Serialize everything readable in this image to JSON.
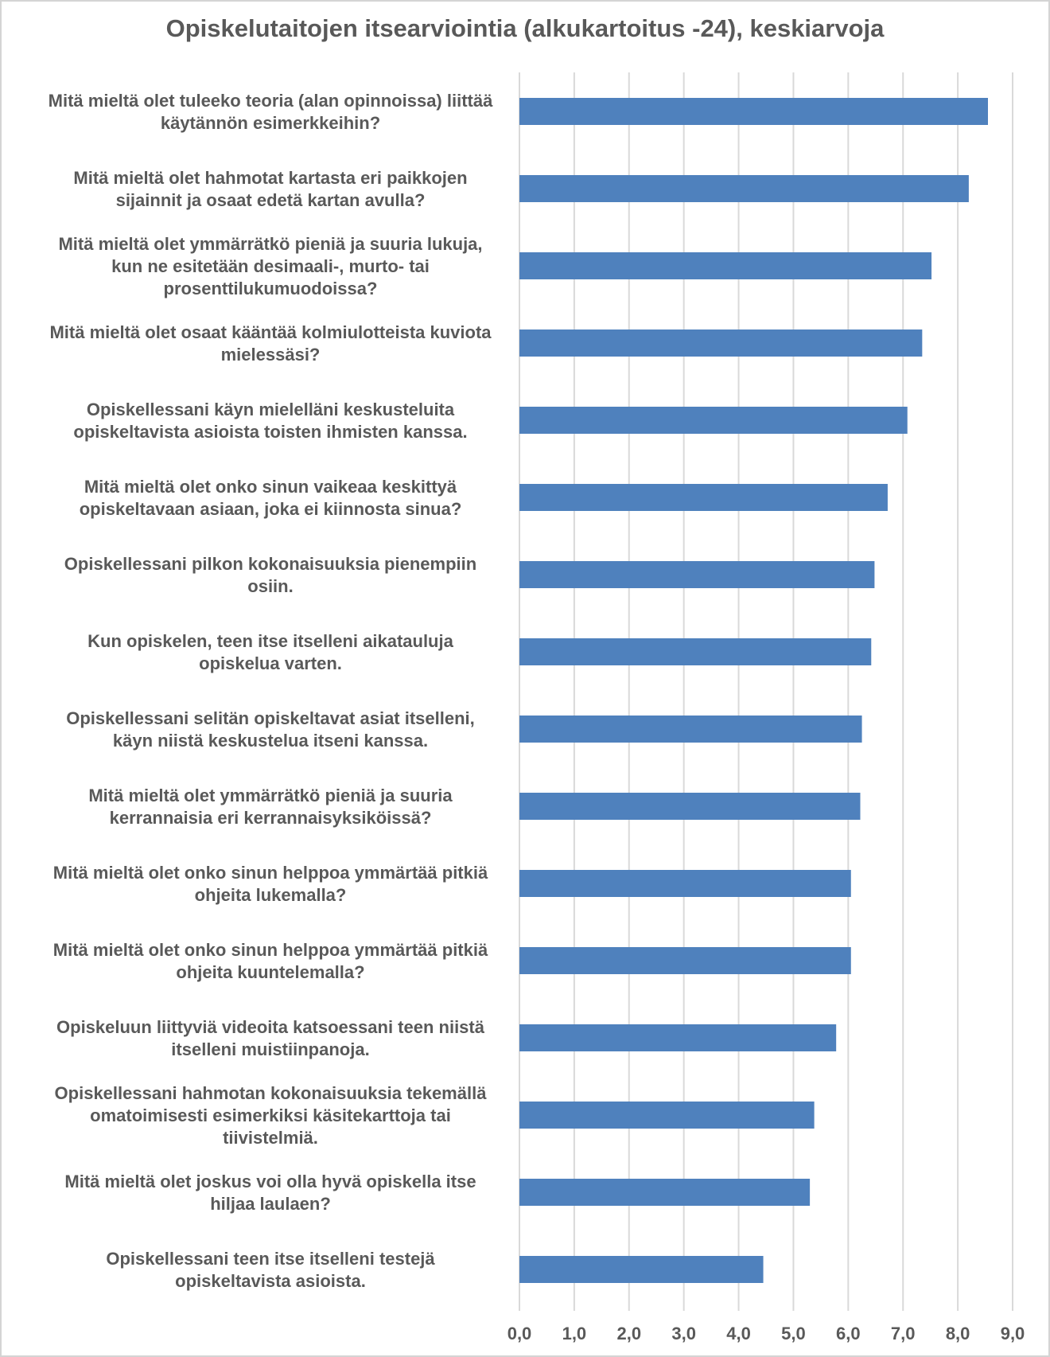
{
  "chart_data": {
    "type": "bar",
    "orientation": "horizontal",
    "title": "Opiskelutaitojen itsearviointia (alkukartoitus -24), keskiarvoja",
    "xlabel": "",
    "ylabel": "",
    "xlim": [
      0,
      9
    ],
    "ticks": [
      "0,0",
      "1,0",
      "2,0",
      "3,0",
      "4,0",
      "5,0",
      "6,0",
      "7,0",
      "8,0",
      "9,0"
    ],
    "grid": "vertical",
    "bar_color": "#4f81bd",
    "categories": [
      [
        "Mitä mieltä olet tuleeko teoria (alan opinnoissa) liittää",
        "käytännön esimerkkeihin?"
      ],
      [
        "Mitä mieltä olet hahmotat kartasta eri paikkojen",
        "sijainnit ja osaat edetä kartan avulla?"
      ],
      [
        "Mitä mieltä olet ymmärrätkö pieniä ja suuria lukuja,",
        "kun ne esitetään desimaali-, murto- tai",
        "prosenttilukumuodoissa?"
      ],
      [
        "Mitä mieltä olet osaat kääntää kolmiulotteista kuviota",
        "mielessäsi?"
      ],
      [
        "Opiskellessani käyn mielelläni keskusteluita",
        "opiskeltavista asioista toisten ihmisten kanssa."
      ],
      [
        "Mitä mieltä olet onko sinun vaikeaa keskittyä",
        "opiskeltavaan asiaan, joka ei kiinnosta sinua?"
      ],
      [
        "Opiskellessani pilkon kokonaisuuksia pienempiin",
        "osiin."
      ],
      [
        "Kun opiskelen, teen itse itselleni aikatauluja",
        "opiskelua varten."
      ],
      [
        "Opiskellessani selitän opiskeltavat asiat itselleni,",
        "käyn niistä keskustelua itseni kanssa."
      ],
      [
        "Mitä mieltä olet ymmärrätkö pieniä ja suuria",
        "kerrannaisia eri kerrannaisyksiköissä?"
      ],
      [
        "Mitä mieltä olet onko sinun helppoa ymmärtää pitkiä",
        "ohjeita lukemalla?"
      ],
      [
        "Mitä mieltä olet onko sinun helppoa ymmärtää pitkiä",
        "ohjeita kuuntelemalla?"
      ],
      [
        "Opiskeluun liittyviä videoita katsoessani teen niistä",
        "itselleni muistiinpanoja."
      ],
      [
        "Opiskellessani hahmotan kokonaisuuksia tekemällä",
        "omatoimisesti esimerkiksi käsitekarttoja tai",
        "tiivistelmiä."
      ],
      [
        "Mitä mieltä olet joskus voi olla hyvä opiskella itse",
        "hiljaa laulaen?"
      ],
      [
        "Opiskellessani teen itse itselleni testejä",
        "opiskeltavista asioista."
      ]
    ],
    "values": [
      8.55,
      8.2,
      7.52,
      7.35,
      7.08,
      6.72,
      6.48,
      6.42,
      6.25,
      6.22,
      6.05,
      6.05,
      5.78,
      5.38,
      5.3,
      4.45
    ]
  }
}
